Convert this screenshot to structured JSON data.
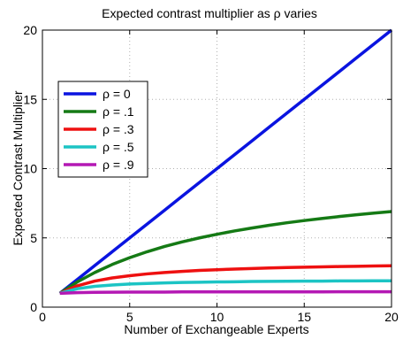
{
  "chart_data": {
    "type": "line",
    "title": "Expected contrast multiplier as ρ varies",
    "xlabel": "Number of Exchangeable Experts",
    "ylabel": "Expected Contrast Multiplier",
    "xlim": [
      0,
      20
    ],
    "ylim": [
      0,
      20
    ],
    "xticks": [
      0,
      5,
      10,
      15,
      20
    ],
    "yticks": [
      0,
      5,
      10,
      15,
      20
    ],
    "grid": true,
    "legend_position": "upper-left",
    "x": [
      1,
      2,
      3,
      4,
      5,
      6,
      7,
      8,
      9,
      10,
      11,
      12,
      13,
      14,
      15,
      16,
      17,
      18,
      19,
      20
    ],
    "series": [
      {
        "name": "ρ = 0",
        "color": "#0a14e0",
        "values": [
          1,
          2,
          3,
          4,
          5,
          6,
          7,
          8,
          9,
          10,
          11,
          12,
          13,
          14,
          15,
          16,
          17,
          18,
          19,
          20
        ]
      },
      {
        "name": "ρ = .1",
        "color": "#157a15",
        "values": [
          1,
          1.82,
          2.5,
          3.08,
          3.57,
          4.0,
          4.38,
          4.71,
          5.0,
          5.26,
          5.5,
          5.71,
          5.91,
          6.09,
          6.25,
          6.4,
          6.54,
          6.67,
          6.79,
          6.9
        ]
      },
      {
        "name": "ρ = .3",
        "color": "#ee1010",
        "values": [
          1,
          1.54,
          1.88,
          2.11,
          2.27,
          2.4,
          2.5,
          2.58,
          2.65,
          2.7,
          2.75,
          2.79,
          2.83,
          2.86,
          2.88,
          2.91,
          2.93,
          2.95,
          2.97,
          2.99
        ]
      },
      {
        "name": "ρ = .5",
        "color": "#1cc4c4",
        "values": [
          1,
          1.33,
          1.5,
          1.6,
          1.67,
          1.71,
          1.75,
          1.78,
          1.8,
          1.82,
          1.83,
          1.85,
          1.86,
          1.87,
          1.88,
          1.88,
          1.89,
          1.89,
          1.9,
          1.9
        ]
      },
      {
        "name": "ρ = .9",
        "color": "#b418b4",
        "values": [
          1,
          1.05,
          1.07,
          1.08,
          1.09,
          1.09,
          1.09,
          1.1,
          1.1,
          1.1,
          1.1,
          1.1,
          1.1,
          1.1,
          1.1,
          1.1,
          1.11,
          1.11,
          1.11,
          1.11
        ]
      }
    ]
  }
}
